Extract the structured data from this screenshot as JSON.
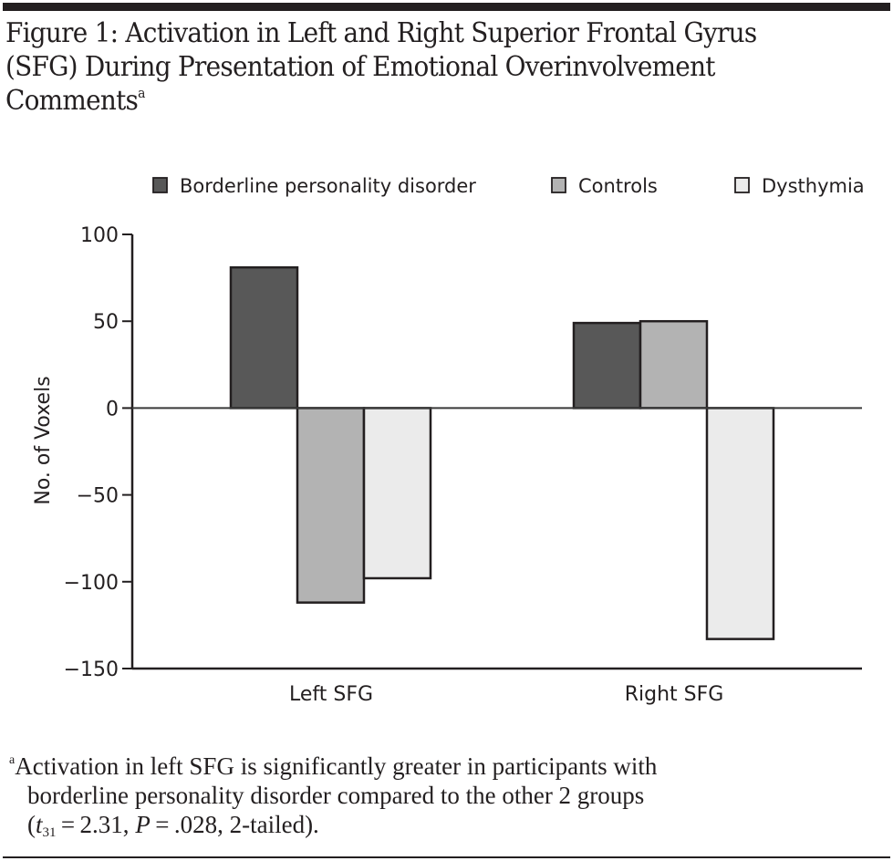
{
  "title": {
    "text": "Figure 1: Activation in Left and Right Superior Frontal Gyrus (SFG) During Presentation of Emotional Overinvolvement Comments",
    "superscript": "a"
  },
  "chart_data": {
    "type": "bar",
    "title": "Figure 1: Activation in Left and Right Superior Frontal Gyrus (SFG) During Presentation of Emotional Overinvolvement Comments",
    "xlabel": "",
    "ylabel": "No. of Voxels",
    "categories": [
      "Left SFG",
      "Right SFG"
    ],
    "series": [
      {
        "name": "Borderline personality disorder",
        "color": "#585858",
        "values": [
          81,
          49
        ]
      },
      {
        "name": "Controls",
        "color": "#b3b3b3",
        "values": [
          -112,
          50
        ]
      },
      {
        "name": "Dysthymia",
        "color": "#ebebeb",
        "values": [
          -98,
          -133
        ]
      }
    ],
    "ylim": [
      -150,
      100
    ],
    "yticks": [
      100,
      50,
      0,
      -50,
      -100,
      -150
    ],
    "ytick_labels": [
      "100",
      "50",
      "0",
      "−50",
      "−100",
      "−150"
    ],
    "grid": false,
    "legend_position": "top"
  },
  "footnote": {
    "marker": "a",
    "line1": "Activation in left SFG is significantly greater in participants with",
    "line2": "borderline personality disorder compared to the other 2 groups",
    "line3_pre": "(",
    "line3_t": "t",
    "line3_sub": "31",
    "line3_mid": " = 2.31, ",
    "line3_p": "P",
    "line3_post": " = .028, 2-tailed)."
  }
}
